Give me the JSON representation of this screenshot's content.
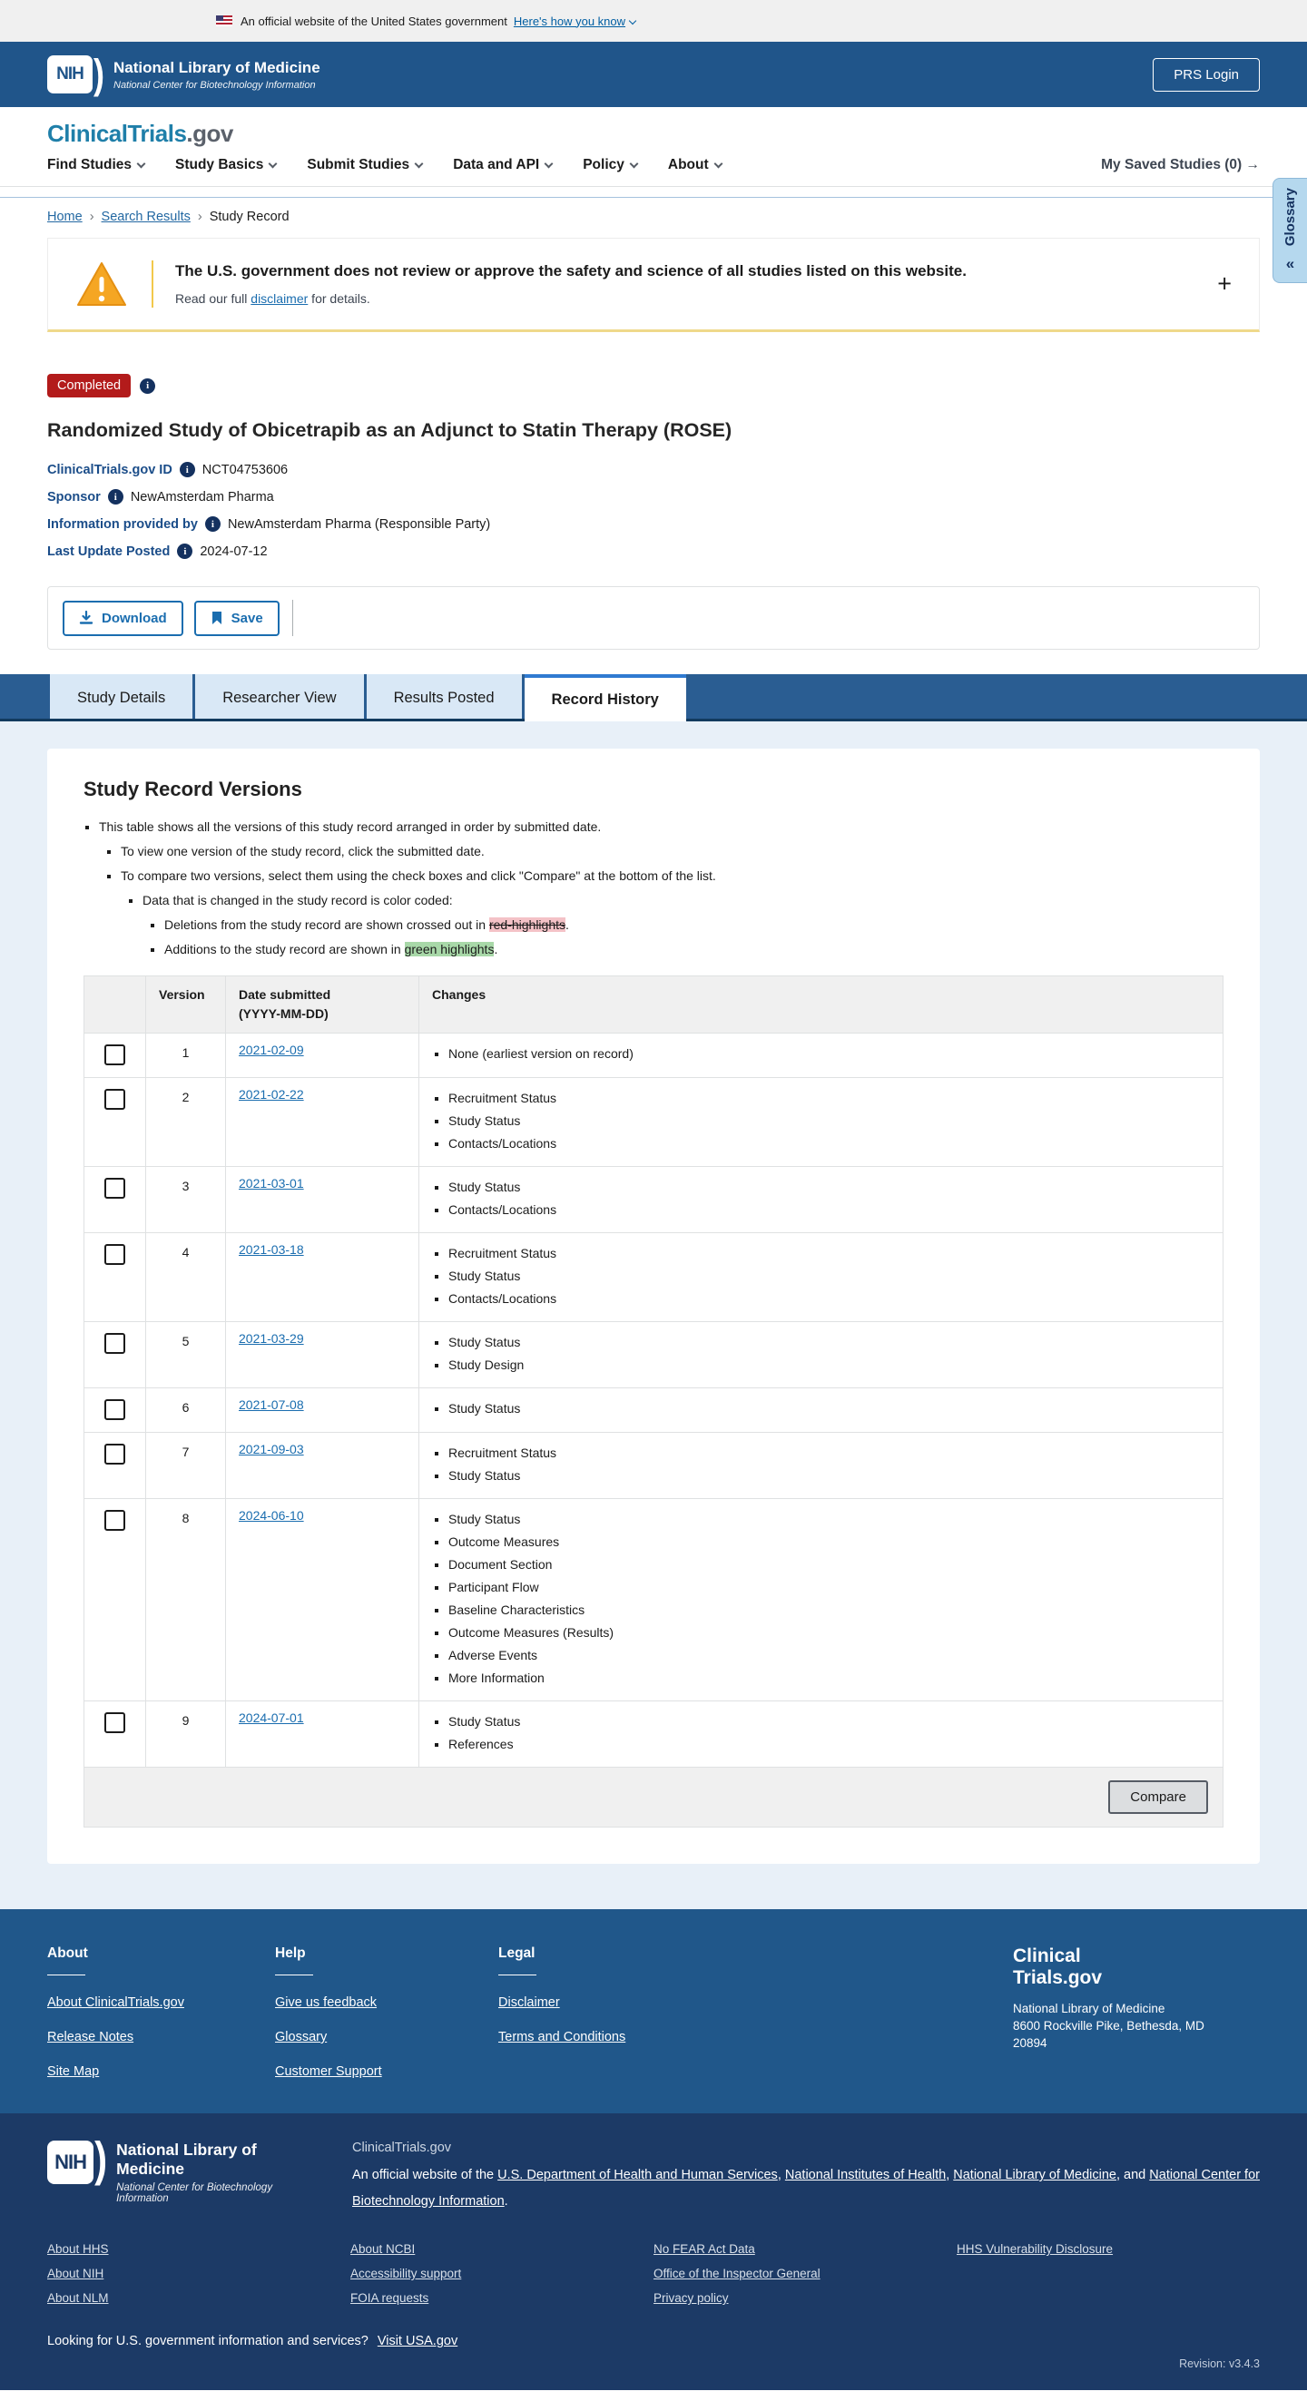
{
  "colors": {
    "header_blue": "#20558a",
    "brand_teal": "#1f7fa9",
    "badge_red": "#b31b1b",
    "link_blue": "#1a6daf",
    "highlight_red_bg": "#f4c2c7",
    "highlight_green_bg": "#a8d8a8",
    "footer_dark": "#1c3a66"
  },
  "gov_banner": {
    "text": "An official website of the United States government",
    "link": "Here's how you know"
  },
  "header": {
    "logo_acronym": "NIH",
    "logo_wing": ")",
    "logo_title": "National Library of Medicine",
    "logo_subtitle": "National Center for Biotechnology Information",
    "prs_login": "PRS Login"
  },
  "nav": {
    "logo_primary": "ClinicalTrials",
    "logo_suffix": ".gov",
    "items": [
      "Find Studies",
      "Study Basics",
      "Submit Studies",
      "Data and API",
      "Policy",
      "About"
    ],
    "saved_label": "My Saved Studies (0)",
    "saved_arrow_icon": "→"
  },
  "breadcrumb": {
    "separator": "›",
    "items": [
      {
        "label": "Home",
        "link": true
      },
      {
        "label": "Search Results",
        "link": true
      },
      {
        "label": "Study Record",
        "link": false
      }
    ]
  },
  "glossary_tab": {
    "label": "Glossary",
    "collapse_icon": "«"
  },
  "warning": {
    "title": "The U.S. government does not review or approve the safety and science of all studies listed on this website.",
    "body_prefix": "Read our full ",
    "body_link": "disclaimer",
    "body_suffix": " for details.",
    "expand_icon": "+"
  },
  "study": {
    "status": "Completed",
    "info_icon_glyph": "i",
    "title": "Randomized Study of Obicetrapib as an Adjunct to Statin Therapy (ROSE)",
    "fields": [
      {
        "label": "ClinicalTrials.gov ID",
        "value": "NCT04753606"
      },
      {
        "label": "Sponsor",
        "value": "NewAmsterdam Pharma"
      },
      {
        "label": "Information provided by",
        "value": "NewAmsterdam Pharma (Responsible Party)"
      },
      {
        "label": "Last Update Posted",
        "value": "2024-07-12"
      }
    ]
  },
  "actions": {
    "download": "Download",
    "save": "Save"
  },
  "tabs": [
    {
      "label": "Study Details",
      "active": false
    },
    {
      "label": "Researcher View",
      "active": false
    },
    {
      "label": "Results Posted",
      "active": false
    },
    {
      "label": "Record History",
      "active": true
    }
  ],
  "record_history": {
    "heading": "Study Record Versions",
    "notes": [
      {
        "runs": [
          {
            "t": "This table shows all the versions of this study record arranged in order by submitted date."
          }
        ],
        "children": [
          {
            "runs": [
              {
                "t": "To view one version of the study record, click the submitted date."
              }
            ]
          },
          {
            "runs": [
              {
                "t": "To compare two versions, select them using the check boxes and click \"Compare\" at the bottom of the list."
              }
            ],
            "children": [
              {
                "runs": [
                  {
                    "t": "Data that is changed in the study record is color coded:"
                  }
                ],
                "children": [
                  {
                    "runs": [
                      {
                        "t": "Deletions from the study record are shown crossed out in "
                      },
                      {
                        "t": "red-highlights",
                        "highlight": "red"
                      },
                      {
                        "t": "."
                      }
                    ]
                  },
                  {
                    "runs": [
                      {
                        "t": "Additions to the study record are shown in "
                      },
                      {
                        "t": "green highlights",
                        "highlight": "green"
                      },
                      {
                        "t": "."
                      }
                    ]
                  }
                ]
              }
            ]
          }
        ]
      }
    ],
    "table": {
      "headers": [
        "",
        "Version",
        "Date submitted\n(YYYY-MM-DD)",
        "Changes"
      ],
      "rows": [
        {
          "version": "1",
          "date": "2021-02-09",
          "changes": [
            "None (earliest version on record)"
          ]
        },
        {
          "version": "2",
          "date": "2021-02-22",
          "changes": [
            "Recruitment Status",
            "Study Status",
            "Contacts/Locations"
          ]
        },
        {
          "version": "3",
          "date": "2021-03-01",
          "changes": [
            "Study Status",
            "Contacts/Locations"
          ]
        },
        {
          "version": "4",
          "date": "2021-03-18",
          "changes": [
            "Recruitment Status",
            "Study Status",
            "Contacts/Locations"
          ]
        },
        {
          "version": "5",
          "date": "2021-03-29",
          "changes": [
            "Study Status",
            "Study Design"
          ]
        },
        {
          "version": "6",
          "date": "2021-07-08",
          "changes": [
            "Study Status"
          ]
        },
        {
          "version": "7",
          "date": "2021-09-03",
          "changes": [
            "Recruitment Status",
            "Study Status"
          ]
        },
        {
          "version": "8",
          "date": "2024-06-10",
          "changes": [
            "Study Status",
            "Outcome Measures",
            "Document Section",
            "Participant Flow",
            "Baseline Characteristics",
            "Outcome Measures (Results)",
            "Adverse Events",
            "More Information"
          ]
        },
        {
          "version": "9",
          "date": "2024-07-01",
          "changes": [
            "Study Status",
            "References"
          ]
        }
      ],
      "compare_label": "Compare"
    }
  },
  "footer_mid": {
    "columns": [
      {
        "heading": "About",
        "links": [
          "About ClinicalTrials.gov",
          "Release Notes",
          "Site Map"
        ]
      },
      {
        "heading": "Help",
        "links": [
          "Give us feedback",
          "Glossary",
          "Customer Support"
        ]
      },
      {
        "heading": "Legal",
        "links": [
          "Disclaimer",
          "Terms and Conditions"
        ]
      }
    ],
    "brand_line1": "Clinical",
    "brand_line2": "Trials.gov",
    "address": "National Library of Medicine\n8600 Rockville Pike, Bethesda, MD 20894"
  },
  "footer_dark": {
    "logo_acronym": "NIH",
    "logo_wing": ")",
    "logo_title": "National Library of Medicine",
    "logo_subtitle": "National Center for Biotechnology Information",
    "site": "ClinicalTrials.gov",
    "official_segments": [
      {
        "t": "An official website of the "
      },
      {
        "t": "U.S. Department of Health and Human Services",
        "link": true
      },
      {
        "t": ", "
      },
      {
        "t": "National Institutes of Health",
        "link": true
      },
      {
        "t": ", "
      },
      {
        "t": "National Library of Medicine",
        "link": true
      },
      {
        "t": ", and "
      },
      {
        "t": "National Center for Biotechnology Information",
        "link": true
      },
      {
        "t": "."
      }
    ],
    "link_columns": [
      [
        "About HHS",
        "About NIH",
        "About NLM"
      ],
      [
        "About NCBI",
        "Accessibility support",
        "FOIA requests"
      ],
      [
        "No FEAR Act Data",
        "Office of the Inspector General",
        "Privacy policy"
      ],
      [
        "HHS Vulnerability Disclosure"
      ]
    ],
    "usa_prompt": "Looking for U.S. government information and services?",
    "usa_link": "Visit USA.gov",
    "revision": "Revision: v3.4.3"
  }
}
